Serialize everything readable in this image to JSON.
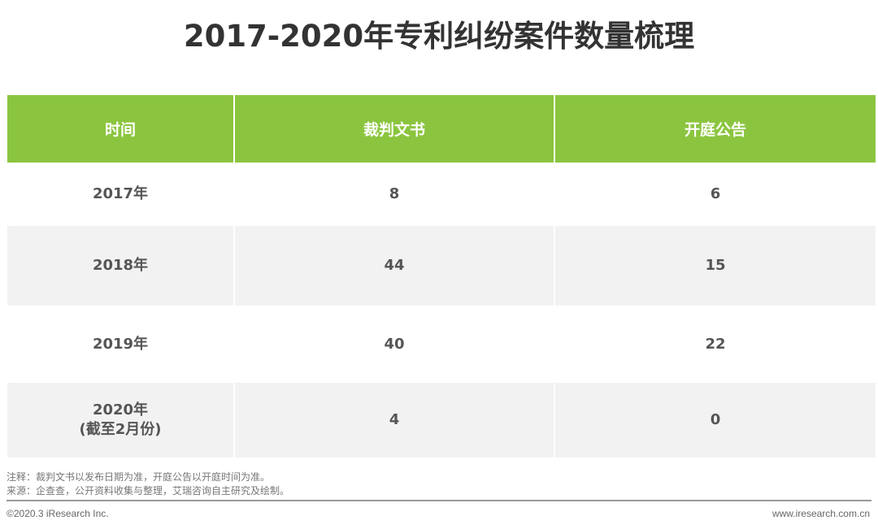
{
  "title": "2017-2020年专利纠纷案件数量梳理",
  "table": {
    "headers": [
      "时间",
      "裁判文书",
      "开庭公告"
    ],
    "rows": [
      {
        "year": "2017年",
        "sub": "",
        "judgments": "8",
        "hearings": "6"
      },
      {
        "year": "2018年",
        "sub": "",
        "judgments": "44",
        "hearings": "15"
      },
      {
        "year": "2019年",
        "sub": "",
        "judgments": "40",
        "hearings": "22"
      },
      {
        "year": "2020年",
        "sub": "(截至2月份)",
        "judgments": "4",
        "hearings": "0"
      }
    ]
  },
  "colors": {
    "header": "#8bc53f",
    "stripe": "#f2f2f2"
  },
  "notes": {
    "note": "注释：裁判文书以发布日期为准，开庭公告以开庭时间为准。",
    "source": "来源：企查查，公开资料收集与整理，艾瑞咨询自主研究及绘制。"
  },
  "footer": {
    "copyright": "©2020.3 iResearch Inc.",
    "website": "www.iresearch.com.cn"
  }
}
